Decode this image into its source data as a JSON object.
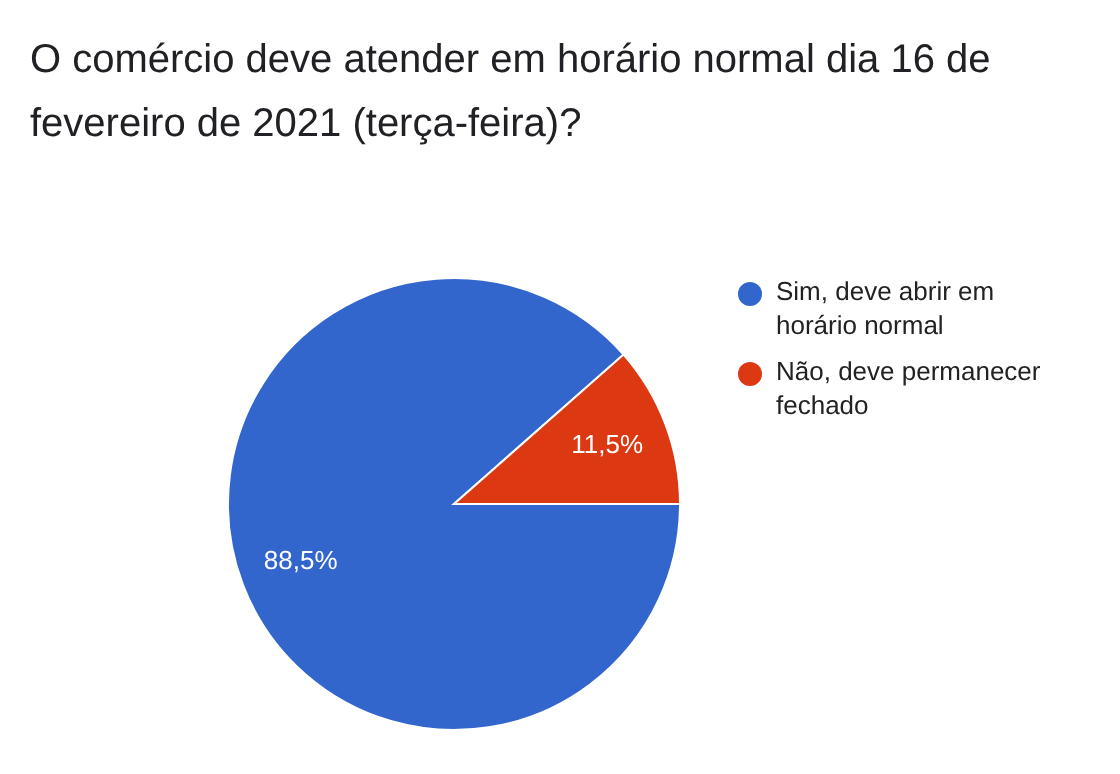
{
  "chart_data": {
    "type": "pie",
    "title": "O comércio deve atender em horário normal dia 16 de fevereiro de 2021 (terça-feira)?",
    "categories": [
      "Sim, deve abrir em horário normal",
      "Não, deve permanecer fechado"
    ],
    "values": [
      88.5,
      11.5
    ],
    "colors": [
      "#3366cc",
      "#dc3912"
    ],
    "value_labels": [
      "88,5%",
      "11,5%"
    ],
    "legend": "right"
  }
}
